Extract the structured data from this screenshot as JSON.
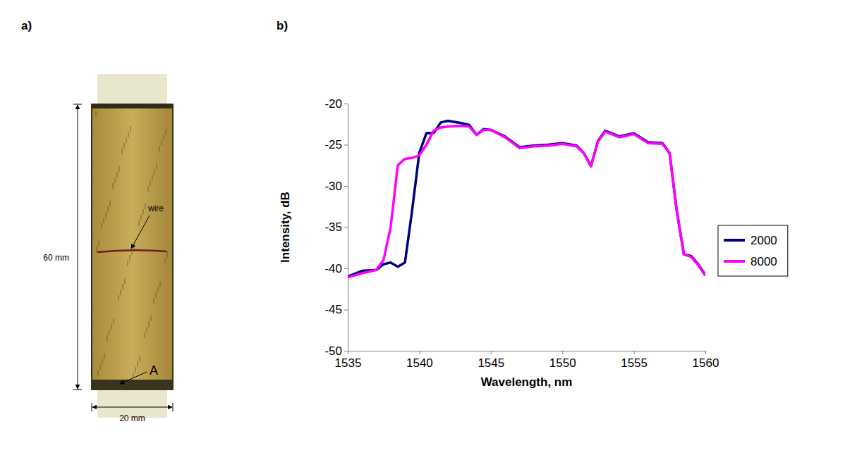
{
  "panels": {
    "a": "a)",
    "b": "b)"
  },
  "specimen": {
    "annotations": [
      "wire",
      "A"
    ],
    "dimensions": [
      "60 mm",
      "20 mm"
    ]
  },
  "chart_data": {
    "type": "line",
    "x_label": "Wavelength, nm",
    "y_label": "Intensity, dB",
    "x": [
      1535,
      1536,
      1537,
      1537.5,
      1538,
      1538.5,
      1539,
      1539.5,
      1540,
      1540.5,
      1541,
      1541.5,
      1542,
      1543,
      1543.5,
      1544,
      1544.5,
      1545,
      1546,
      1547,
      1548,
      1549,
      1550,
      1551,
      1551.5,
      1552,
      1552.5,
      1553,
      1554,
      1555,
      1556,
      1557,
      1557.5,
      1558,
      1558.5,
      1559,
      1559.5,
      1560
    ],
    "series": [
      {
        "name": "2000",
        "color": "#000080",
        "values": [
          -41,
          -40.3,
          -40.2,
          -39.5,
          -39.3,
          -39.8,
          -39.3,
          -33,
          -26,
          -23.6,
          -23.6,
          -22.3,
          -22.1,
          -22.4,
          -22.6,
          -23.8,
          -23.1,
          -23.2,
          -24,
          -25.3,
          -25.1,
          -25,
          -24.8,
          -25.1,
          -26,
          -27.6,
          -24.5,
          -23.3,
          -24,
          -23.6,
          -24.7,
          -24.8,
          -26,
          -33,
          -38.3,
          -38.5,
          -39.5,
          -40.8
        ]
      },
      {
        "name": "8000",
        "color": "#ff00ff",
        "values": [
          -41.1,
          -40.6,
          -40.2,
          -39,
          -35,
          -27.5,
          -26.7,
          -26.6,
          -26.3,
          -25,
          -23.3,
          -22.9,
          -22.8,
          -22.7,
          -22.8,
          -23.8,
          -23.2,
          -23.2,
          -24.1,
          -25.4,
          -25.2,
          -25.1,
          -24.9,
          -25.2,
          -26,
          -27.6,
          -24.6,
          -23.4,
          -24.1,
          -23.7,
          -24.8,
          -24.9,
          -26,
          -33,
          -38.3,
          -38.6,
          -39.6,
          -40.9
        ]
      }
    ],
    "xlim": [
      1535,
      1560
    ],
    "xticks": [
      1535,
      1540,
      1545,
      1550,
      1555,
      1560
    ],
    "ylim": [
      -50,
      -20
    ],
    "yticks": [
      -50,
      -45,
      -40,
      -35,
      -30,
      -25,
      -20
    ],
    "grid": false,
    "legend": "right"
  }
}
